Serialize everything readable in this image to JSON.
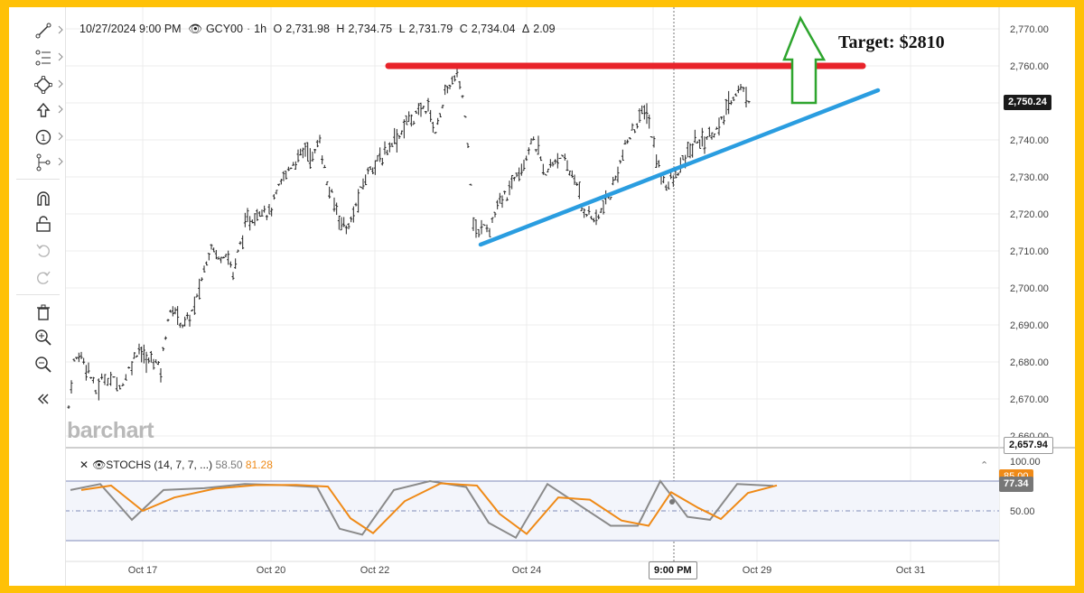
{
  "header": {
    "datetime": "10/27/2024 9:00 PM",
    "symbol": "GCY00",
    "interval": "1h",
    "open_label": "O",
    "open": "2,731.98",
    "high_label": "H",
    "high": "2,734.75",
    "low_label": "L",
    "low": "2,731.79",
    "close_label": "C",
    "close": "2,734.04",
    "change_label": "Δ",
    "change": "2.09"
  },
  "price_axis": {
    "ticks": [
      "2,770.00",
      "2,760.00",
      "2,750.00",
      "2,740.00",
      "2,730.00",
      "2,720.00",
      "2,710.00",
      "2,700.00",
      "2,690.00",
      "2,680.00",
      "2,670.00",
      "2,660.00"
    ],
    "last_price": "2,750.24",
    "low_marker": "2,657.94"
  },
  "time_axis": {
    "labels": [
      "Oct 17",
      "Oct 20",
      "Oct 22",
      "Oct 24",
      "Oct 29",
      "Oct 31"
    ],
    "crosshair_time": "9:00 PM"
  },
  "annotation": {
    "target": "Target: $2810",
    "resistance_color": "#e8232a",
    "support_color": "#2a9de0",
    "arrow_color": "#2ea52e"
  },
  "stochastic": {
    "name": "STOCHS (14, 7, 7, ...)",
    "k_value": "58.50",
    "d_value": "81.28",
    "axis_ticks": [
      "100.00",
      "50.00"
    ],
    "d_tag": "85.00",
    "k_tag": "77.34",
    "k_color": "#808080",
    "d_color": "#ef8a17"
  },
  "logo": "barchart",
  "toolbar": {
    "icons": [
      "trend-line-icon",
      "fibonacci-icon",
      "shape-icon",
      "arrow-up-icon",
      "numbered-marker-icon",
      "projection-icon",
      "magnet-icon",
      "unlock-icon",
      "undo-icon",
      "redo-icon",
      "trash-icon",
      "zoom-in-icon",
      "zoom-out-icon",
      "collapse-icon"
    ]
  },
  "chart_data": {
    "type": "bar",
    "ylim": [
      2655,
      2772
    ],
    "x_labels": [
      "Oct 17",
      "Oct 20",
      "Oct 22",
      "Oct 24",
      "Oct 29",
      "Oct 31"
    ],
    "close_path": [
      [
        0,
        2668
      ],
      [
        6,
        2680
      ],
      [
        14,
        2682
      ],
      [
        22,
        2678
      ],
      [
        30,
        2672
      ],
      [
        40,
        2676
      ],
      [
        50,
        2675
      ],
      [
        60,
        2674
      ],
      [
        70,
        2680
      ],
      [
        78,
        2684
      ],
      [
        86,
        2680
      ],
      [
        94,
        2681
      ],
      [
        102,
        2678
      ],
      [
        110,
        2692
      ],
      [
        118,
        2694
      ],
      [
        126,
        2690
      ],
      [
        134,
        2692
      ],
      [
        142,
        2697
      ],
      [
        150,
        2705
      ],
      [
        158,
        2712
      ],
      [
        166,
        2708
      ],
      [
        174,
        2710
      ],
      [
        182,
        2704
      ],
      [
        190,
        2712
      ],
      [
        198,
        2718
      ],
      [
        206,
        2719
      ],
      [
        214,
        2722
      ],
      [
        222,
        2720
      ],
      [
        230,
        2725
      ],
      [
        238,
        2730
      ],
      [
        246,
        2733
      ],
      [
        254,
        2735
      ],
      [
        262,
        2738
      ],
      [
        270,
        2735
      ],
      [
        278,
        2740
      ],
      [
        286,
        2728
      ],
      [
        294,
        2723
      ],
      [
        302,
        2718
      ],
      [
        310,
        2716
      ],
      [
        318,
        2722
      ],
      [
        326,
        2728
      ],
      [
        334,
        2733
      ],
      [
        342,
        2734
      ],
      [
        350,
        2736
      ],
      [
        358,
        2740
      ],
      [
        366,
        2741
      ],
      [
        374,
        2745
      ],
      [
        382,
        2746
      ],
      [
        390,
        2748
      ],
      [
        398,
        2749
      ],
      [
        406,
        2742
      ],
      [
        414,
        2750
      ],
      [
        422,
        2755
      ],
      [
        430,
        2757
      ],
      [
        436,
        2752
      ],
      [
        442,
        2740
      ],
      [
        448,
        2718
      ],
      [
        454,
        2714
      ],
      [
        460,
        2718
      ],
      [
        466,
        2716
      ],
      [
        472,
        2720
      ],
      [
        480,
        2724
      ],
      [
        488,
        2726
      ],
      [
        496,
        2732
      ],
      [
        504,
        2734
      ],
      [
        512,
        2740
      ],
      [
        520,
        2737
      ],
      [
        528,
        2730
      ],
      [
        536,
        2734
      ],
      [
        544,
        2736
      ],
      [
        552,
        2732
      ],
      [
        560,
        2730
      ],
      [
        568,
        2722
      ],
      [
        576,
        2720
      ],
      [
        584,
        2718
      ],
      [
        592,
        2722
      ],
      [
        600,
        2725
      ],
      [
        608,
        2732
      ],
      [
        616,
        2738
      ],
      [
        624,
        2742
      ],
      [
        632,
        2746
      ],
      [
        640,
        2748
      ],
      [
        648,
        2738
      ],
      [
        656,
        2730
      ],
      [
        664,
        2728
      ],
      [
        672,
        2730
      ],
      [
        680,
        2734
      ],
      [
        688,
        2737
      ],
      [
        696,
        2740
      ],
      [
        704,
        2740
      ],
      [
        712,
        2742
      ],
      [
        720,
        2743
      ],
      [
        728,
        2748
      ],
      [
        736,
        2752
      ],
      [
        744,
        2754
      ],
      [
        750,
        2752
      ],
      [
        756,
        2750
      ]
    ]
  }
}
